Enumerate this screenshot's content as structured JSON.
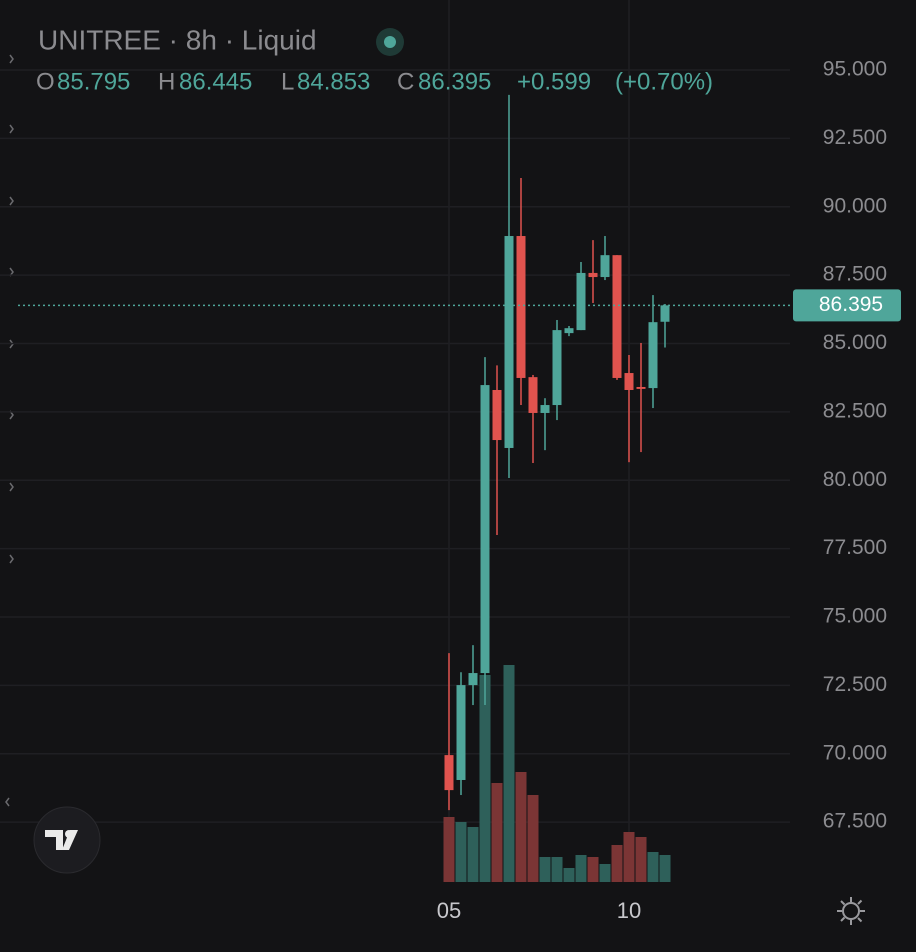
{
  "chart_data": {
    "type": "candlestick",
    "title": "UNITREE · 8h · Liquid",
    "ohlc_labels": [
      "O",
      "H",
      "L",
      "C"
    ],
    "change": "+0.599",
    "change_pct": "(+0.70%)",
    "categories": [
      "05",
      null,
      null,
      null,
      null,
      null,
      null,
      null,
      null,
      null,
      null,
      null,
      null,
      null,
      null,
      "10",
      null,
      null,
      null
    ],
    "open": [
      69.95,
      69.04,
      72.51,
      72.95,
      83.3,
      81.18,
      88.93,
      83.77,
      82.46,
      82.75,
      85.38,
      85.49,
      87.58,
      87.43,
      88.23,
      83.92,
      83.41,
      83.37,
      85.795
    ],
    "high": [
      73.68,
      72.98,
      73.97,
      84.5,
      84.2,
      94.09,
      91.05,
      83.85,
      83.0,
      85.86,
      85.64,
      87.98,
      88.78,
      88.93,
      88.23,
      84.58,
      85.02,
      86.77,
      86.445
    ],
    "low": [
      67.94,
      68.49,
      71.78,
      71.78,
      78.0,
      80.08,
      82.75,
      80.63,
      81.1,
      82.2,
      85.27,
      85.49,
      86.48,
      87.32,
      83.67,
      80.66,
      81.03,
      82.64,
      84.853
    ],
    "close": [
      68.67,
      72.51,
      72.95,
      83.48,
      81.47,
      88.93,
      83.74,
      82.46,
      82.75,
      85.49,
      85.56,
      87.58,
      87.43,
      88.23,
      83.74,
      83.3,
      83.34,
      85.78,
      86.395
    ],
    "volume": [
      65,
      60,
      55,
      207,
      99,
      217,
      110,
      87,
      25,
      25,
      14,
      27,
      25,
      18,
      37,
      50,
      45,
      30,
      27
    ],
    "up_color": "#4fa69a",
    "down_color": "#e0534e",
    "volume_up_color": "#2e605a",
    "volume_down_color": "#7b3535",
    "ylim": [
      65.31,
      97.56
    ],
    "yticks": [
      {
        "value": 67.5,
        "label": "67.500"
      },
      {
        "value": 70,
        "label": "70.000"
      },
      {
        "value": 72.5,
        "label": "72.500"
      },
      {
        "value": 75,
        "label": "75.000"
      },
      {
        "value": 77.5,
        "label": "77.500"
      },
      {
        "value": 80,
        "label": "80.000"
      },
      {
        "value": 82.5,
        "label": "82.500"
      },
      {
        "value": 85,
        "label": "85.000"
      },
      {
        "value": 87.5,
        "label": "87.500"
      },
      {
        "value": 90,
        "label": "90.000"
      },
      {
        "value": 92.5,
        "label": "92.500"
      },
      {
        "value": 95,
        "label": "95.000"
      }
    ],
    "grid": true
  }
}
